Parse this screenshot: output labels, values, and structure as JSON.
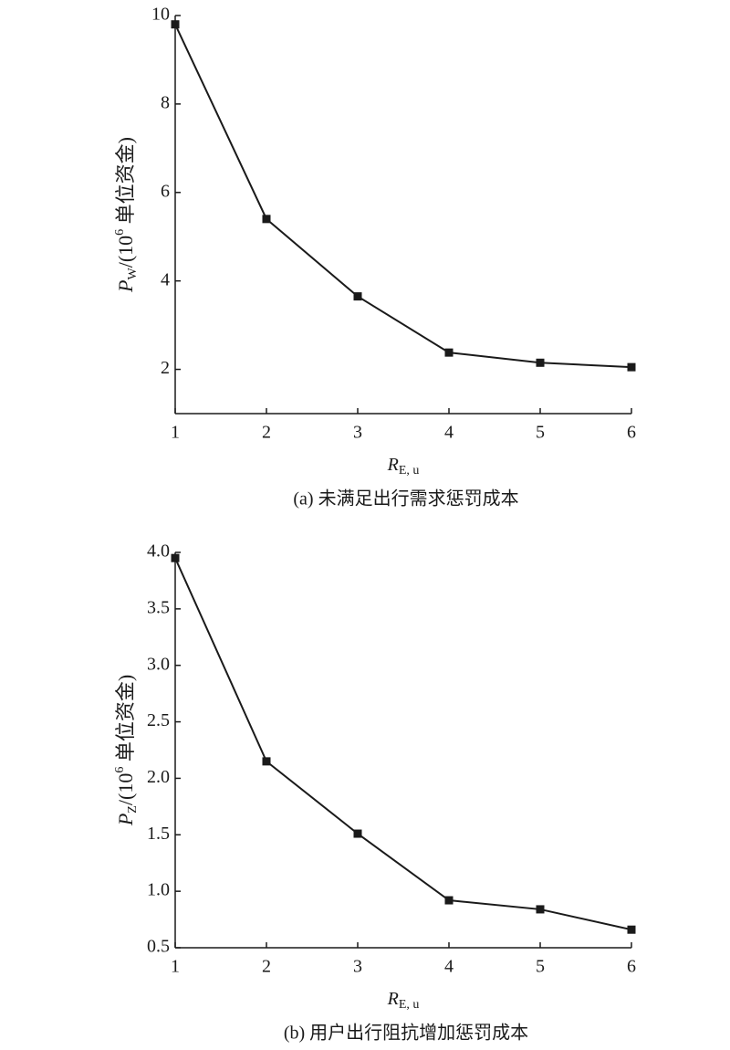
{
  "chart_data": [
    {
      "type": "line",
      "caption": "(a) 未满足出行需求惩罚成本",
      "xlabel": {
        "symbol": "R",
        "subscript": "E, u"
      },
      "ylabel": {
        "symbol": "P",
        "subscript": "W",
        "text": "/(10",
        "superscript": "6",
        "unit": " 单位资金)"
      },
      "x": [
        1,
        2,
        3,
        4,
        5,
        6
      ],
      "series": [
        {
          "color": "#1a1a1a",
          "values": [
            9.8,
            5.4,
            3.65,
            2.38,
            2.15,
            2.05
          ]
        }
      ],
      "xlim": [
        1,
        6
      ],
      "xticks": [
        1,
        2,
        3,
        4,
        5,
        6
      ],
      "ylim": [
        1,
        10
      ],
      "yticks": [
        2,
        4,
        6,
        8,
        10
      ]
    },
    {
      "type": "line",
      "caption": "(b) 用户出行阻抗增加惩罚成本",
      "xlabel": {
        "symbol": "R",
        "subscript": "E, u"
      },
      "ylabel": {
        "symbol": "P",
        "subscript": "Z",
        "text": "/(10",
        "superscript": "6",
        "unit": " 单位资金)"
      },
      "x": [
        1,
        2,
        3,
        4,
        5,
        6
      ],
      "series": [
        {
          "color": "#1a1a1a",
          "values": [
            3.95,
            2.15,
            1.51,
            0.92,
            0.84,
            0.66
          ]
        }
      ],
      "xlim": [
        1,
        6
      ],
      "xticks": [
        1,
        2,
        3,
        4,
        5,
        6
      ],
      "ylim": [
        0.5,
        4
      ],
      "yticks": [
        0.5,
        {
          "value": 1,
          "label": "1.0"
        },
        1.5,
        {
          "value": 2,
          "label": "2.0"
        },
        2.5,
        {
          "value": 3,
          "label": "3.0"
        },
        3.5,
        {
          "value": 4,
          "label": "4.0"
        }
      ]
    }
  ]
}
